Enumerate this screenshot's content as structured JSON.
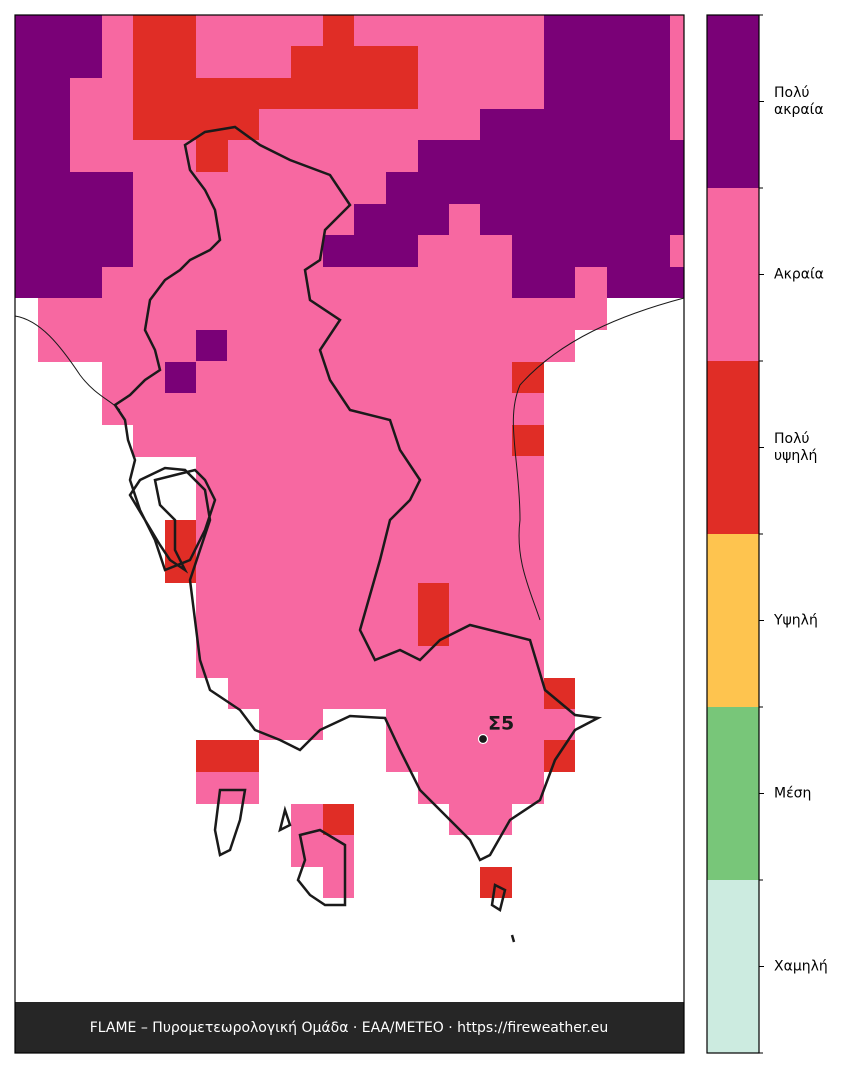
{
  "map": {
    "station": {
      "label": "Σ5"
    },
    "footer": "FLAME – Πυρομετεωρολογική Ομάδα · ΕΑΑ/METEO · https://fireweather.eu"
  },
  "legend": {
    "levels": [
      {
        "label": "Πολύ ακραία",
        "color": "#7a0177"
      },
      {
        "label": "Ακραία",
        "color": "#f768a1"
      },
      {
        "label": "Πολύ υψηλή",
        "color": "#e02d26"
      },
      {
        "label": "Υψηλή",
        "color": "#fec44f"
      },
      {
        "label": "Μέση",
        "color": "#78c679"
      },
      {
        "label": "Χαμηλή",
        "color": "#ccebe0"
      }
    ]
  }
}
